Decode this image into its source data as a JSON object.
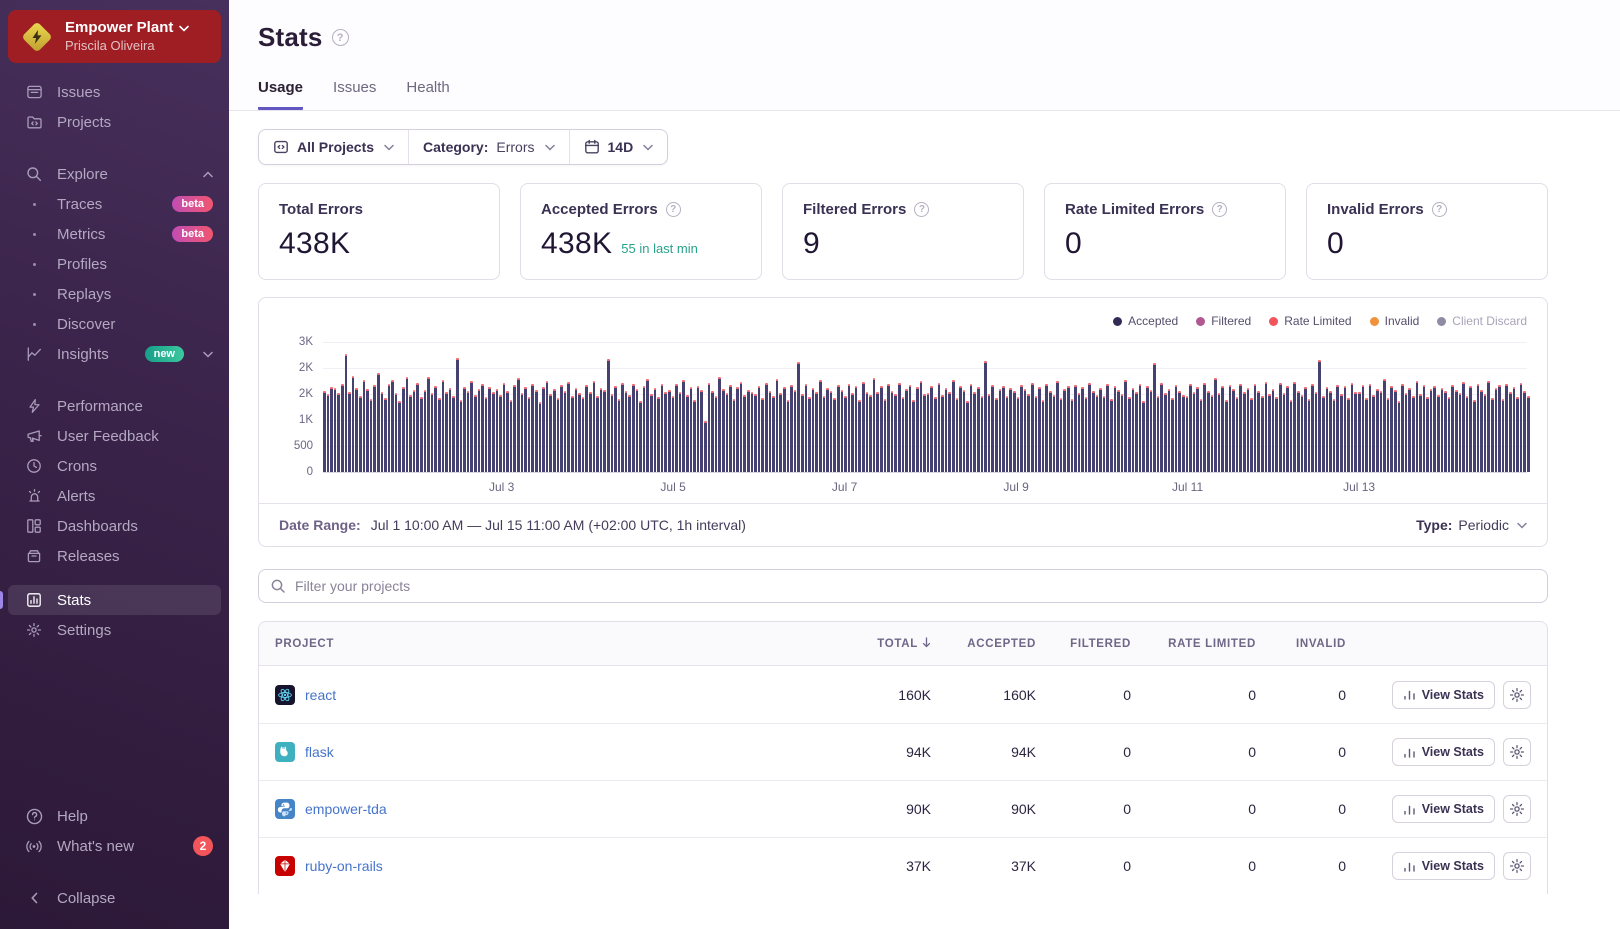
{
  "org": {
    "name": "Empower Plant",
    "user": "Priscila Oliveira"
  },
  "sidebar": {
    "items": [
      {
        "label": "Issues",
        "icon": "issues-icon"
      },
      {
        "label": "Projects",
        "icon": "projects-icon"
      },
      {
        "gap": "lg"
      },
      {
        "label": "Explore",
        "icon": "search-icon",
        "chevron": "up"
      },
      {
        "label": "Traces",
        "bullet": true,
        "badge": "beta"
      },
      {
        "label": "Metrics",
        "bullet": true,
        "badge": "beta"
      },
      {
        "label": "Profiles",
        "bullet": true
      },
      {
        "label": "Replays",
        "bullet": true
      },
      {
        "label": "Discover",
        "bullet": true
      },
      {
        "label": "Insights",
        "icon": "insights-icon",
        "badge": "new",
        "chevron": "down"
      },
      {
        "gap": "lg"
      },
      {
        "label": "Performance",
        "icon": "lightning-icon"
      },
      {
        "label": "User Feedback",
        "icon": "megaphone-icon"
      },
      {
        "label": "Crons",
        "icon": "clock-icon"
      },
      {
        "label": "Alerts",
        "icon": "siren-icon"
      },
      {
        "label": "Dashboards",
        "icon": "dashboards-icon"
      },
      {
        "label": "Releases",
        "icon": "releases-icon"
      },
      {
        "gap": "sm"
      },
      {
        "label": "Stats",
        "icon": "stats-icon",
        "active": true
      },
      {
        "label": "Settings",
        "icon": "gear-icon"
      }
    ],
    "footer": {
      "help": "Help",
      "whats_new": "What's new",
      "whats_new_count": "2",
      "collapse": "Collapse"
    }
  },
  "header": {
    "title": "Stats",
    "tabs": [
      {
        "label": "Usage",
        "active": true
      },
      {
        "label": "Issues",
        "active": false
      },
      {
        "label": "Health",
        "active": false
      }
    ]
  },
  "filters": {
    "projects": "All Projects",
    "category_label": "Category:",
    "category_value": "Errors",
    "period": "14D"
  },
  "cards": [
    {
      "title": "Total Errors",
      "value": "438K",
      "help": false,
      "sub": ""
    },
    {
      "title": "Accepted Errors",
      "value": "438K",
      "help": true,
      "sub": "55 in last min"
    },
    {
      "title": "Filtered Errors",
      "value": "9",
      "help": true,
      "sub": ""
    },
    {
      "title": "Rate Limited Errors",
      "value": "0",
      "help": true,
      "sub": ""
    },
    {
      "title": "Invalid Errors",
      "value": "0",
      "help": true,
      "sub": ""
    }
  ],
  "chart_data": {
    "type": "bar",
    "interval": "1h",
    "x_range": "Jul 1 10:00 AM – Jul 15 11:00 AM",
    "ylim": [
      0,
      2500
    ],
    "y_tick_labels_bottom_up": [
      "0",
      "500",
      "1K",
      "2K",
      "2K",
      "3K"
    ],
    "x_tick_labels": [
      "Jul 3",
      "Jul 5",
      "Jul 7",
      "Jul 9",
      "Jul 11",
      "Jul 13"
    ],
    "legend": [
      {
        "name": "Accepted",
        "color": "#312c56",
        "muted": false
      },
      {
        "name": "Filtered",
        "color": "#b0588f",
        "muted": false
      },
      {
        "name": "Rate Limited",
        "color": "#f2545b",
        "muted": false
      },
      {
        "name": "Invalid",
        "color": "#f0913c",
        "muted": false
      },
      {
        "name": "Client Discard",
        "color": "#908aa3",
        "muted": true
      }
    ],
    "bar_color": "#454170",
    "cap_color": "#eb6a74",
    "values": [
      1560,
      1500,
      1640,
      1610,
      1525,
      1700,
      2260,
      1530,
      1840,
      1620,
      1470,
      1760,
      1590,
      1400,
      1665,
      1895,
      1545,
      1430,
      1690,
      1770,
      1510,
      1360,
      1630,
      1820,
      1480,
      1575,
      1705,
      1450,
      1585,
      1830,
      1515,
      1660,
      1425,
      1775,
      1545,
      1615,
      1465,
      2190,
      1385,
      1635,
      1565,
      1745,
      1485,
      1595,
      1685,
      1435,
      1625,
      1540,
      1605,
      1490,
      1720,
      1555,
      1380,
      1665,
      1810,
      1520,
      1630,
      1445,
      1700,
      1580,
      1350,
      1640,
      1755,
      1495,
      1605,
      1420,
      1680,
      1560,
      1730,
      1470,
      1610,
      1525,
      1440,
      1680,
      1535,
      1750,
      1460,
      1620,
      1570,
      2170,
      1505,
      1650,
      1395,
      1715,
      1560,
      1475,
      1685,
      1590,
      1370,
      1655,
      1780,
      1500,
      1615,
      1450,
      1695,
      1545,
      1570,
      1455,
      1690,
      1540,
      1770,
      1485,
      1635,
      1385,
      1660,
      1575,
      980,
      1705,
      1550,
      1465,
      1820,
      1595,
      1510,
      1670,
      1405,
      1630,
      1740,
      1490,
      1585,
      1535,
      1495,
      1645,
      1430,
      1715,
      1555,
      1470,
      1795,
      1525,
      1640,
      1375,
      1665,
      1580,
      2110,
      1500,
      1690,
      1445,
      1610,
      1530,
      1760,
      1465,
      1620,
      1555,
      1415,
      1675,
      1585,
      1460,
      1700,
      1515,
      1655,
      1390,
      1730,
      1545,
      1475,
      1805,
      1530,
      1645,
      1410,
      1685,
      1565,
      1495,
      1720,
      1440,
      1600,
      1665,
      1385,
      1630,
      1750,
      1505,
      1525,
      1660,
      1445,
      1705,
      1480,
      1615,
      1535,
      1775,
      1420,
      1650,
      1570,
      1365,
      1695,
      1540,
      1625,
      1455,
      2130,
      1505,
      1680,
      1430,
      1590,
      1655,
      1470,
      1615,
      1550,
      1435,
      1670,
      1595,
      1505,
      1720,
      1460,
      1640,
      1380,
      1700,
      1565,
      1490,
      1745,
      1425,
      1605,
      1660,
      1395,
      1680,
      1520,
      1635,
      1450,
      1710,
      1555,
      1475,
      1615,
      1470,
      1685,
      1395,
      1650,
      1575,
      1500,
      1765,
      1440,
      1620,
      1545,
      1690,
      1365,
      1655,
      1585,
      2090,
      1455,
      1705,
      1525,
      1595,
      1430,
      1665,
      1550,
      1480,
      1465,
      1695,
      1530,
      1635,
      1405,
      1720,
      1560,
      1475,
      1810,
      1515,
      1645,
      1385,
      1675,
      1590,
      1440,
      1700,
      1535,
      1610,
      1420,
      1685,
      1555,
      1465,
      1730,
      1500,
      1590,
      1445,
      1710,
      1520,
      1660,
      1375,
      1740,
      1565,
      1485,
      1625,
      1410,
      1690,
      1545,
      2150,
      1470,
      1635,
      1560,
      1395,
      1675,
      1505,
      1650,
      1430,
      1705,
      1540,
      1535,
      1665,
      1425,
      1700,
      1490,
      1605,
      1555,
      1780,
      1415,
      1645,
      1580,
      1360,
      1685,
      1525,
      1615,
      1460,
      1745,
      1495,
      1670,
      1435,
      1600,
      1655,
      1480,
      1620,
      1560,
      1440,
      1675,
      1585,
      1515,
      1730,
      1455,
      1650,
      1390,
      1695,
      1570,
      1500,
      1755,
      1430,
      1610,
      1665,
      1405,
      1690,
      1535,
      1640,
      1445,
      1715,
      1550,
      1470
    ]
  },
  "daterange": {
    "label": "Date Range:",
    "value": "Jul 1 10:00 AM — Jul 15 11:00 AM (+02:00 UTC, 1h interval)",
    "type_label": "Type:",
    "type_value": "Periodic"
  },
  "project_filter": {
    "placeholder": "Filter your projects"
  },
  "table": {
    "columns": [
      "PROJECT",
      "TOTAL",
      "ACCEPTED",
      "FILTERED",
      "RATE LIMITED",
      "INVALID"
    ],
    "sorted_column": "TOTAL",
    "view_stats_label": "View Stats",
    "rows": [
      {
        "name": "react",
        "platform": "react",
        "total": "160K",
        "accepted": "160K",
        "filtered": "0",
        "rate_limited": "0",
        "invalid": "0"
      },
      {
        "name": "flask",
        "platform": "flask",
        "total": "94K",
        "accepted": "94K",
        "filtered": "0",
        "rate_limited": "0",
        "invalid": "0"
      },
      {
        "name": "empower-tda",
        "platform": "python",
        "total": "90K",
        "accepted": "90K",
        "filtered": "0",
        "rate_limited": "0",
        "invalid": "0"
      },
      {
        "name": "ruby-on-rails",
        "platform": "rails",
        "total": "37K",
        "accepted": "37K",
        "filtered": "0",
        "rate_limited": "0",
        "invalid": "0"
      }
    ]
  }
}
